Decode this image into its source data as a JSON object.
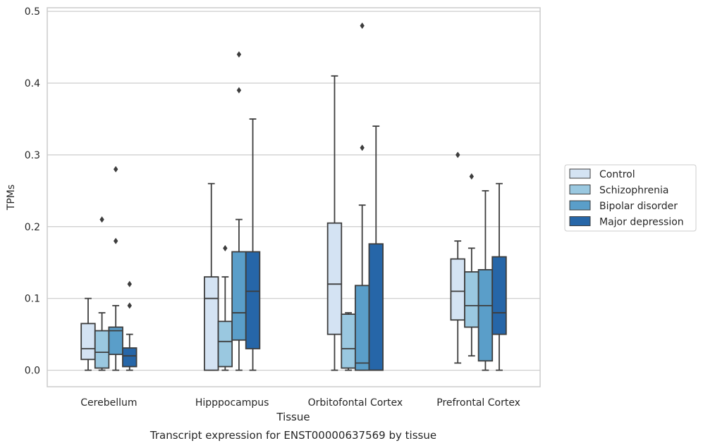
{
  "chart_data": {
    "type": "box",
    "title": "Transcript expression for ENST00000637569 by tissue",
    "xlabel": "Tissue",
    "ylabel": "TPMs",
    "ylim": [
      -0.023,
      0.505
    ],
    "yticks": [
      0.0,
      0.1,
      0.2,
      0.3,
      0.4,
      0.5
    ],
    "ytick_labels": [
      "0.0",
      "0.1",
      "0.2",
      "0.3",
      "0.4",
      "0.5"
    ],
    "categories": [
      "Cerebellum",
      "Hipppocampus",
      "Orbitofontal Cortex",
      "Prefrontal Cortex"
    ],
    "grid": true,
    "legend_position": "right",
    "series": [
      {
        "name": "Control",
        "color": "#d4e3f3",
        "boxes": [
          {
            "whisker_low": 0.0,
            "q1": 0.015,
            "median": 0.03,
            "q3": 0.065,
            "whisker_high": 0.1,
            "outliers": []
          },
          {
            "whisker_low": 0.0,
            "q1": 0.0,
            "median": 0.1,
            "q3": 0.13,
            "whisker_high": 0.26,
            "outliers": []
          },
          {
            "whisker_low": 0.0,
            "q1": 0.05,
            "median": 0.12,
            "q3": 0.205,
            "whisker_high": 0.41,
            "outliers": []
          },
          {
            "whisker_low": 0.01,
            "q1": 0.07,
            "median": 0.11,
            "q3": 0.155,
            "whisker_high": 0.18,
            "outliers": [
              0.3
            ]
          }
        ]
      },
      {
        "name": "Schizophrenia",
        "color": "#9ac8e0",
        "boxes": [
          {
            "whisker_low": 0.0,
            "q1": 0.003,
            "median": 0.025,
            "q3": 0.055,
            "whisker_high": 0.08,
            "outliers": [
              0.21
            ]
          },
          {
            "whisker_low": 0.0,
            "q1": 0.005,
            "median": 0.04,
            "q3": 0.068,
            "whisker_high": 0.13,
            "outliers": [
              0.17
            ]
          },
          {
            "whisker_low": 0.0,
            "q1": 0.003,
            "median": 0.03,
            "q3": 0.078,
            "whisker_high": 0.08,
            "outliers": []
          },
          {
            "whisker_low": 0.02,
            "q1": 0.06,
            "median": 0.09,
            "q3": 0.137,
            "whisker_high": 0.17,
            "outliers": [
              0.27
            ]
          }
        ]
      },
      {
        "name": "Bipolar disorder",
        "color": "#5a9ec9",
        "boxes": [
          {
            "whisker_low": 0.0,
            "q1": 0.022,
            "median": 0.055,
            "q3": 0.06,
            "whisker_high": 0.09,
            "outliers": [
              0.18,
              0.28
            ]
          },
          {
            "whisker_low": 0.0,
            "q1": 0.042,
            "median": 0.08,
            "q3": 0.165,
            "whisker_high": 0.21,
            "outliers": [
              0.39,
              0.44
            ]
          },
          {
            "whisker_low": 0.0,
            "q1": 0.0,
            "median": 0.01,
            "q3": 0.118,
            "whisker_high": 0.23,
            "outliers": [
              0.31,
              0.48
            ]
          },
          {
            "whisker_low": 0.0,
            "q1": 0.013,
            "median": 0.09,
            "q3": 0.14,
            "whisker_high": 0.25,
            "outliers": []
          }
        ]
      },
      {
        "name": "Major depression",
        "color": "#2666a8",
        "boxes": [
          {
            "whisker_low": 0.0,
            "q1": 0.005,
            "median": 0.02,
            "q3": 0.031,
            "whisker_high": 0.05,
            "outliers": [
              0.09,
              0.12
            ]
          },
          {
            "whisker_low": 0.0,
            "q1": 0.03,
            "median": 0.11,
            "q3": 0.165,
            "whisker_high": 0.35,
            "outliers": []
          },
          {
            "whisker_low": 0.0,
            "q1": 0.0,
            "median": 0.0,
            "q3": 0.176,
            "whisker_high": 0.34,
            "outliers": []
          },
          {
            "whisker_low": 0.0,
            "q1": 0.05,
            "median": 0.08,
            "q3": 0.158,
            "whisker_high": 0.26,
            "outliers": []
          }
        ]
      }
    ]
  }
}
